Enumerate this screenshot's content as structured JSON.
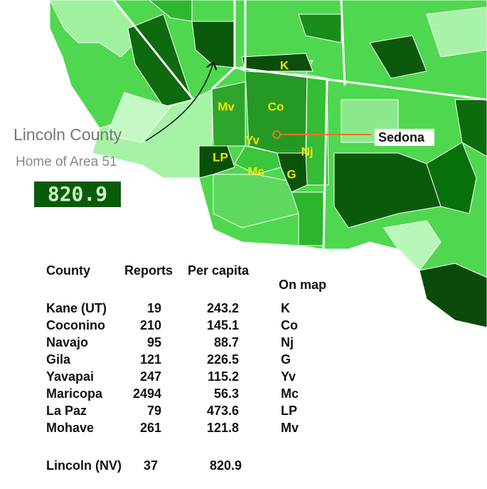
{
  "map": {
    "labels": [
      "K",
      "Mv",
      "Co",
      "Yv",
      "Nj",
      "LP",
      "Mc",
      "G"
    ],
    "marker": "Sedona",
    "callout": {
      "name": "Lincoln County",
      "subtitle": "Home of Area 51",
      "value": 820.9
    }
  },
  "table": {
    "header": [
      "County",
      "Reports",
      "Per capita",
      "On map"
    ],
    "rows": [
      [
        "Kane (UT)",
        19,
        243.2,
        "K"
      ],
      [
        "Coconino",
        210,
        145.1,
        "Co"
      ],
      [
        "Navajo",
        95,
        88.7,
        "Nj"
      ],
      [
        "Gila",
        121,
        226.5,
        "G"
      ],
      [
        "Yavapai",
        247,
        115.2,
        "Yv"
      ],
      [
        "Maricopa",
        2494,
        56.3,
        "Mc"
      ],
      [
        "La Paz",
        79,
        473.6,
        "LP"
      ],
      [
        "Mohave",
        261,
        121.8,
        "Mv"
      ]
    ],
    "footer": [
      "Lincoln (NV)",
      37,
      820.9
    ]
  }
}
